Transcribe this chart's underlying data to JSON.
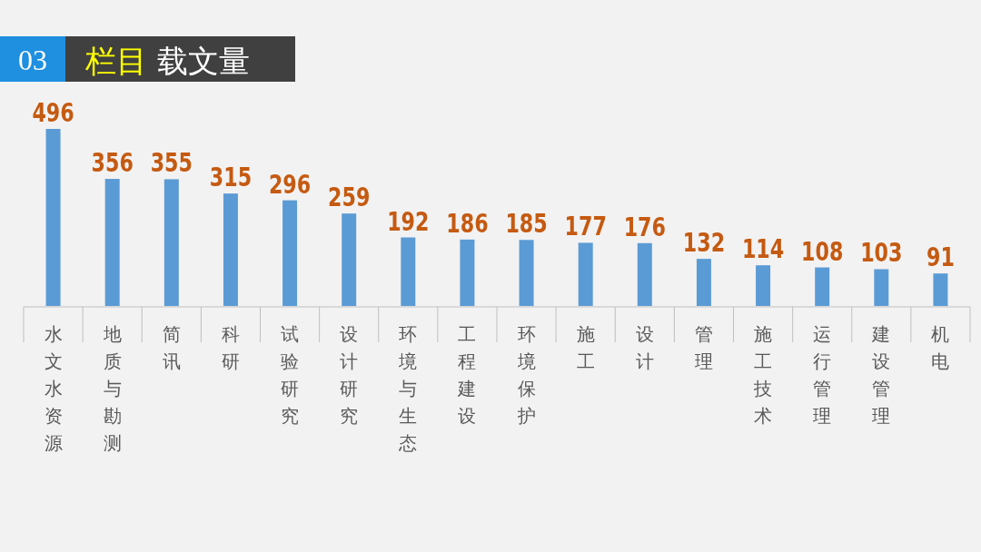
{
  "chart_data": {
    "type": "bar",
    "title": "03 栏目 载文量",
    "categories": [
      "水文水资源",
      "地质与勘测",
      "简讯",
      "科研",
      "试验研究",
      "设计研究",
      "环境与生态",
      "工程建设",
      "环境保护",
      "施工",
      "设计",
      "管理",
      "施工技术",
      "运行管理",
      "建设管理",
      "机电"
    ],
    "values": [
      496,
      356,
      355,
      315,
      296,
      259,
      192,
      186,
      185,
      177,
      176,
      132,
      114,
      108,
      103,
      91
    ],
    "color": "#5b9bd5",
    "data_labels": true
  }
}
